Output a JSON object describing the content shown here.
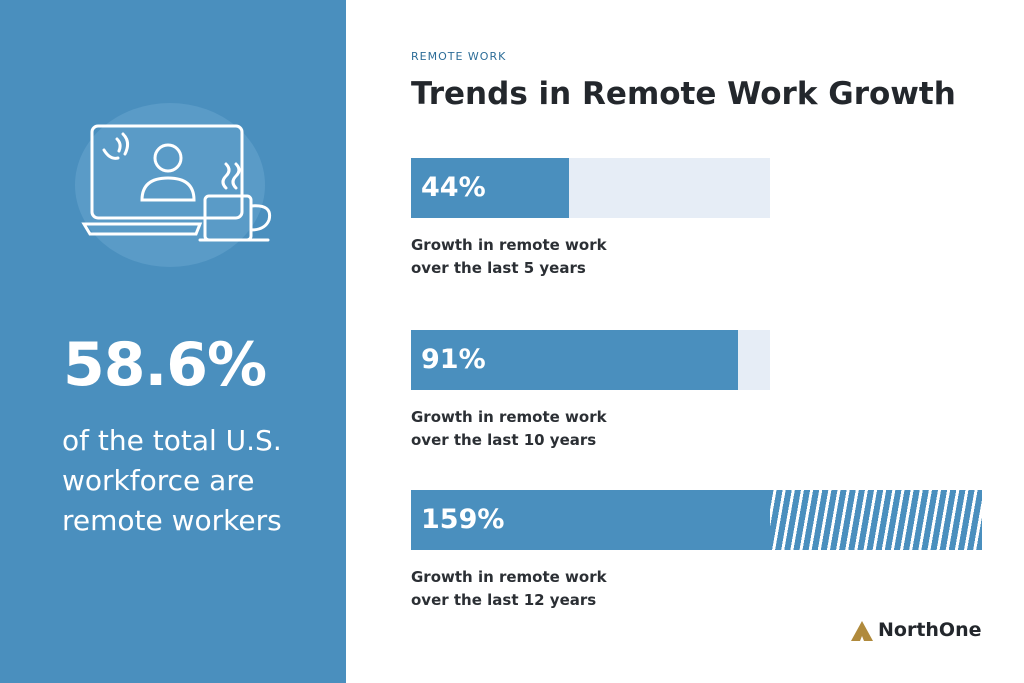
{
  "panel": {
    "stat": "58.6%",
    "text": "of the total U.S. workforce are remote workers"
  },
  "chart_data": {
    "type": "bar",
    "eyebrow": "REMOTE WORK",
    "title": "Trends in Remote Work Growth",
    "values": [
      44,
      91,
      159
    ],
    "value_labels": [
      "44%",
      "91%",
      "159%"
    ],
    "color": "#4a8fbe",
    "captions": [
      [
        "Growth in remote work",
        "over the last 5 years"
      ],
      [
        "Growth in remote work",
        "over the last 10 years"
      ],
      [
        "Growth in remote work",
        "over the last 12 years"
      ]
    ]
  },
  "logo": "NorthOne"
}
